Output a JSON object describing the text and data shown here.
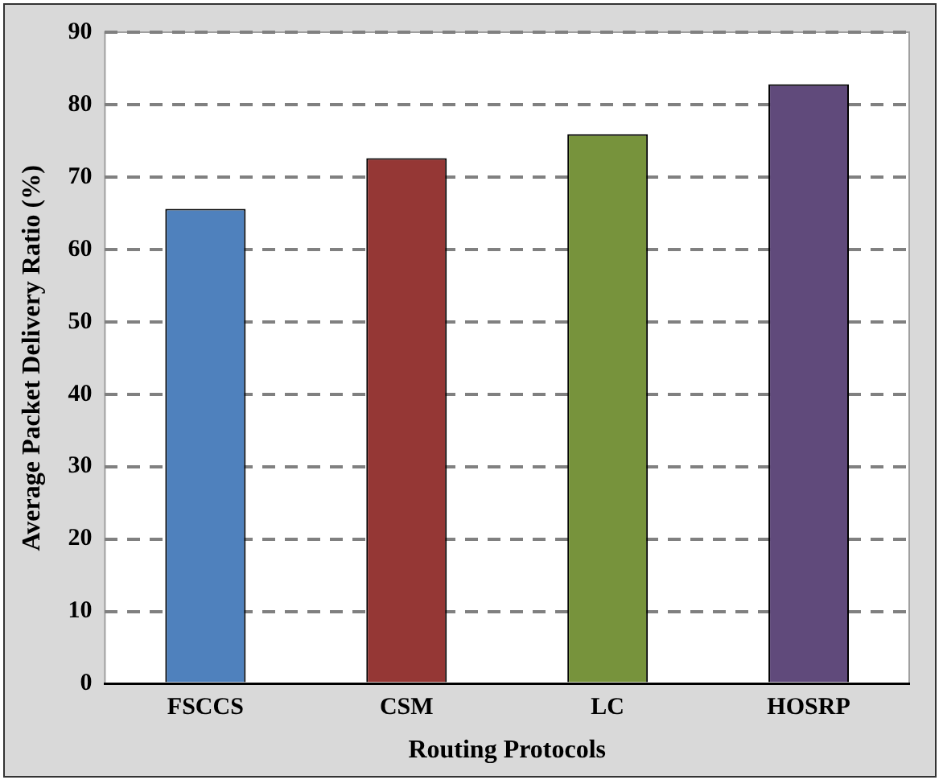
{
  "chart_data": {
    "type": "bar",
    "xlabel": "Routing Protocols",
    "ylabel": "Average Packet Delivery Ratio (%)",
    "categories": [
      "FSCCS",
      "CSM",
      "LC",
      "HOSRP"
    ],
    "values": [
      65.6,
      72.6,
      75.9,
      82.8
    ],
    "colors": [
      "#4f81bd",
      "#953735",
      "#77933c",
      "#604a7b"
    ],
    "ylim": [
      0,
      90
    ],
    "yticks": [
      0,
      10,
      20,
      30,
      40,
      50,
      60,
      70,
      80,
      90
    ],
    "grid": "y",
    "line_style": "dashed",
    "legend": false
  }
}
